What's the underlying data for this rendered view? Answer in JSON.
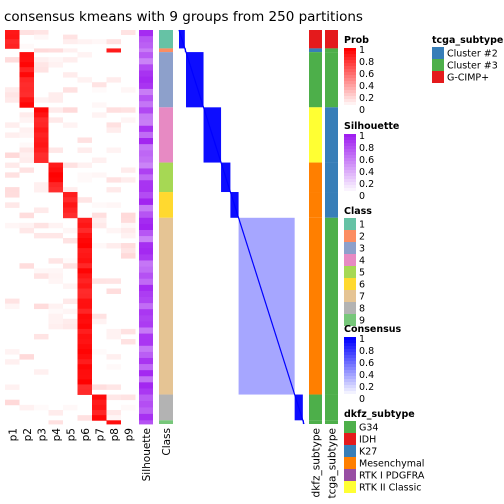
{
  "title": "consensus kmeans with 9 groups from 250 partitions",
  "chart_data": {
    "type": "heatmap",
    "title": "consensus kmeans with 9 groups from 250 partitions",
    "column_labels": [
      "p1",
      "p2",
      "p3",
      "p4",
      "p5",
      "p6",
      "p7",
      "p8",
      "p9",
      "Silhouette",
      "Class",
      "dkfz_subtype",
      "tcga_subtype"
    ],
    "classes": [
      {
        "id": "1",
        "color": "#66C2A5",
        "fraction": 0.05
      },
      {
        "id": "2",
        "color": "#FC8D62",
        "fraction": 0.01
      },
      {
        "id": "3",
        "color": "#8DA0CB",
        "fraction": 0.15
      },
      {
        "id": "4",
        "color": "#E78AC3",
        "fraction": 0.15
      },
      {
        "id": "5",
        "color": "#A6D854",
        "fraction": 0.08
      },
      {
        "id": "6",
        "color": "#FFD92F",
        "fraction": 0.07
      },
      {
        "id": "7",
        "color": "#E5C494",
        "fraction": 0.48
      },
      {
        "id": "8",
        "color": "#B3B3B3",
        "fraction": 0.07
      },
      {
        "id": "9",
        "color": "#77C77A",
        "fraction": 0.01
      }
    ],
    "legends": {
      "prob": {
        "title": "Prob",
        "ticks": [
          "1",
          "0.8",
          "0.6",
          "0.4",
          "0.2",
          "0"
        ],
        "low_color": "#FFFFFF",
        "high_color": "#FF0000"
      },
      "silhouette": {
        "title": "Silhouette",
        "ticks": [
          "1",
          "0.8",
          "0.6",
          "0.4",
          "0.2",
          "0"
        ],
        "low_color": "#FFFFFF",
        "high_color": "#A020F0"
      },
      "class": {
        "title": "Class",
        "items": [
          "1",
          "2",
          "3",
          "4",
          "5",
          "6",
          "7",
          "8",
          "9"
        ]
      },
      "consensus": {
        "title": "Consensus",
        "ticks": [
          "1",
          "0.8",
          "0.6",
          "0.4",
          "0.2",
          "0"
        ],
        "low_color": "#FFFFFF",
        "high_color": "#0000FF"
      },
      "dkfz_subtype": {
        "title": "dkfz_subtype",
        "items": [
          {
            "label": "G34",
            "color": "#4DAF4A"
          },
          {
            "label": "IDH",
            "color": "#E41A1C"
          },
          {
            "label": "K27",
            "color": "#377EB8"
          },
          {
            "label": "Mesenchymal",
            "color": "#FF7F00"
          },
          {
            "label": "RTK I PDGFRA",
            "color": "#984EA3"
          },
          {
            "label": "RTK II Classic",
            "color": "#FFFF33"
          }
        ]
      },
      "tcga_subtype": {
        "title": "tcga_subtype",
        "items": [
          {
            "label": "Cluster #2",
            "color": "#377EB8"
          },
          {
            "label": "Cluster #3",
            "color": "#4DAF4A"
          },
          {
            "label": "G-CIMP+",
            "color": "#E41A1C"
          }
        ]
      }
    }
  }
}
